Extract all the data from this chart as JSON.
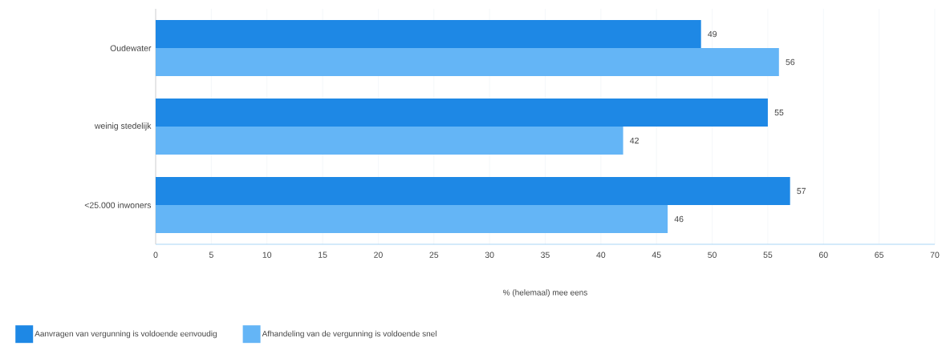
{
  "chart_data": {
    "type": "bar",
    "orientation": "horizontal",
    "categories": [
      "Oudewater",
      "weinig stedelijk",
      "<25.000 inwoners"
    ],
    "series": [
      {
        "name": "Aanvragen van vergunning is voldoende eenvoudig",
        "color": "#1e88e5",
        "values": [
          49,
          55,
          57
        ]
      },
      {
        "name": "Afhandeling van de vergunning is voldoende snel",
        "color": "#64b5f6",
        "values": [
          56,
          42,
          46
        ]
      }
    ],
    "xlabel": "% (helemaal) mee eens",
    "xlim": [
      0,
      70
    ],
    "xticks": [
      0,
      5,
      10,
      15,
      20,
      25,
      30,
      35,
      40,
      45,
      50,
      55,
      60,
      65,
      70
    ],
    "grid": "x",
    "legend": "bottom",
    "data_labels": true
  }
}
